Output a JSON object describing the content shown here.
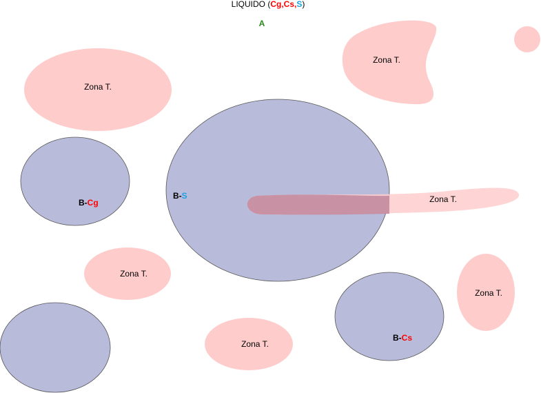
{
  "colors": {
    "zone_fill": "#ffcccc",
    "b_fill": "#b9bbdb",
    "b_stroke": "#555555",
    "cg_red": "#ff0000",
    "s_blue": "#1ba1e2",
    "a_green": "#2d8a1f",
    "overlap_fill": "#c48b9f"
  },
  "title": {
    "prefix": "LIQUIDO (",
    "cg": "Cg",
    "comma1": ",",
    "cs": "Cs",
    "comma2": ",",
    "s": "S",
    "suffix": ")"
  },
  "a_label": "A",
  "zones": {
    "top_left": "Zona T.",
    "top_right": "Zona T.",
    "band": "Zona T.",
    "mid_left": "Zona T.",
    "right_oval": "Zona T.",
    "bottom_center": "Zona T."
  },
  "b_regions": {
    "cg": {
      "prefix": "B-",
      "suffix": "Cg"
    },
    "s": {
      "prefix": "B-",
      "suffix": "S"
    },
    "cs": {
      "prefix": "B-",
      "suffix": "Cs"
    }
  }
}
